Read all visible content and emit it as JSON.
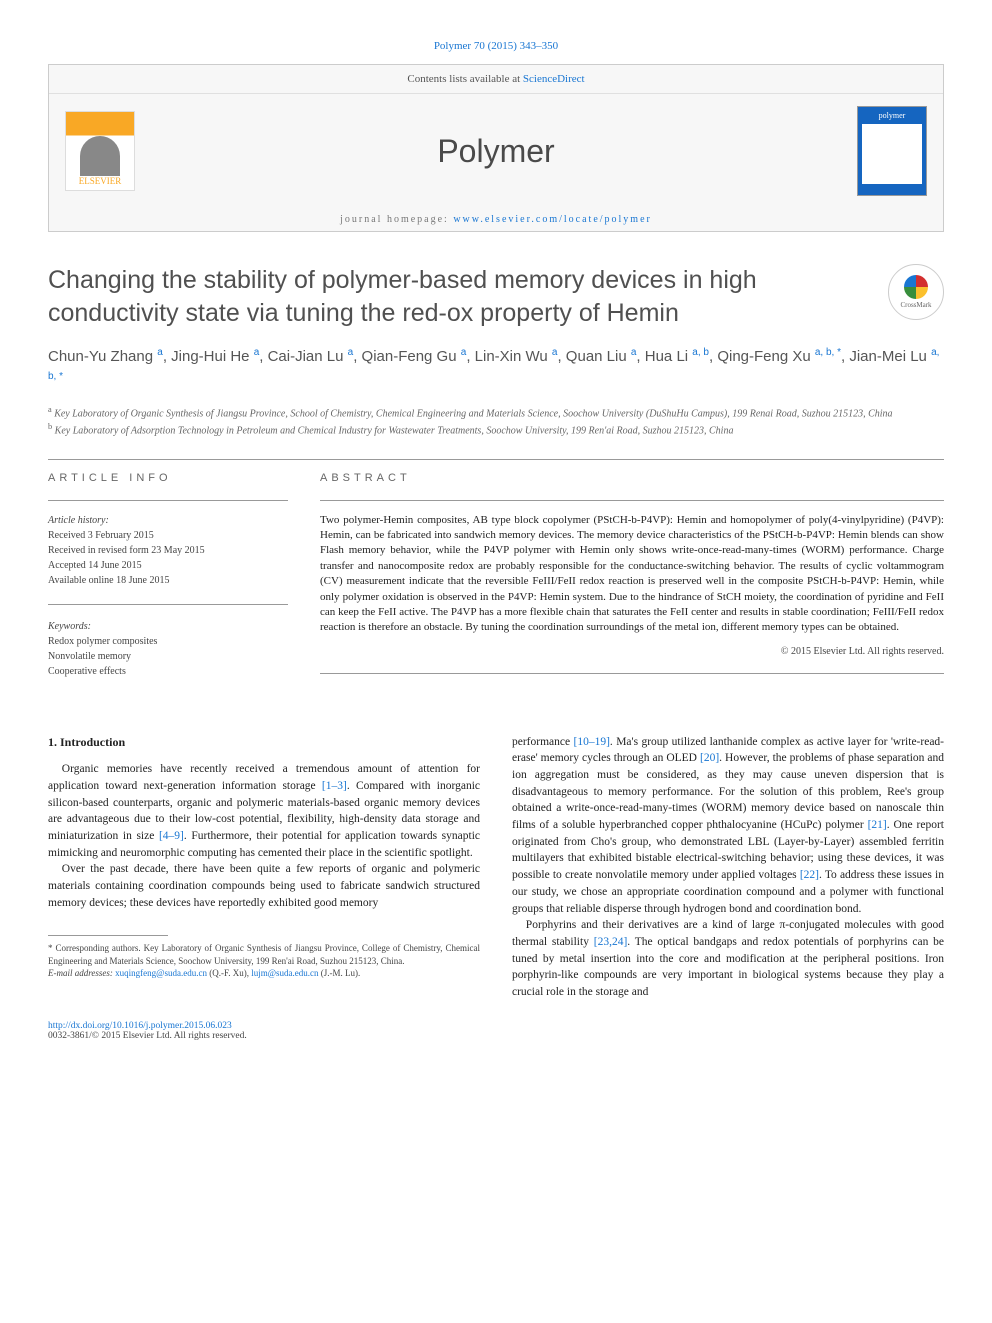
{
  "citation": "Polymer 70 (2015) 343–350",
  "header": {
    "contents_text": "Contents lists available at ",
    "contents_link": "ScienceDirect",
    "journal": "Polymer",
    "homepage_label": "journal homepage: ",
    "homepage_url": "www.elsevier.com/locate/polymer",
    "publisher": "ELSEVIER",
    "cover_label": "polymer"
  },
  "title": "Changing the stability of polymer-based memory devices in high conductivity state via tuning the red-ox property of Hemin",
  "crossmark": "CrossMark",
  "authors_html": "Chun-Yu Zhang <sup>a</sup>, Jing-Hui He <sup>a</sup>, Cai-Jian Lu <sup>a</sup>, Qian-Feng Gu <sup>a</sup>, Lin-Xin Wu <sup>a</sup>, Quan Liu <sup>a</sup>, Hua Li <sup>a, b</sup>, Qing-Feng Xu <sup>a, b, *</sup>, Jian-Mei Lu <sup>a, b, *</sup>",
  "affiliations": {
    "a": "Key Laboratory of Organic Synthesis of Jiangsu Province, School of Chemistry, Chemical Engineering and Materials Science, Soochow University (DuShuHu Campus), 199 Renai Road, Suzhou 215123, China",
    "b": "Key Laboratory of Adsorption Technology in Petroleum and Chemical Industry for Wastewater Treatments, Soochow University, 199 Ren'ai Road, Suzhou 215123, China"
  },
  "info": {
    "label": "ARTICLE INFO",
    "history_label": "Article history:",
    "received": "Received 3 February 2015",
    "revised": "Received in revised form 23 May 2015",
    "accepted": "Accepted 14 June 2015",
    "online": "Available online 18 June 2015",
    "keywords_label": "Keywords:",
    "kw1": "Redox polymer composites",
    "kw2": "Nonvolatile memory",
    "kw3": "Cooperative effects"
  },
  "abstract": {
    "label": "ABSTRACT",
    "text": "Two polymer-Hemin composites, AB type block copolymer (PStCH-b-P4VP): Hemin and homopolymer of poly(4-vinylpyridine) (P4VP): Hemin, can be fabricated into sandwich memory devices. The memory device characteristics of the PStCH-b-P4VP: Hemin blends can show Flash memory behavior, while the P4VP polymer with Hemin only shows write-once-read-many-times (WORM) performance. Charge transfer and nanocomposite redox are probably responsible for the conductance-switching behavior. The results of cyclic voltammogram (CV) measurement indicate that the reversible FeIII/FeII redox reaction is preserved well in the composite PStCH-b-P4VP: Hemin, while only polymer oxidation is observed in the P4VP: Hemin system. Due to the hindrance of StCH moiety, the coordination of pyridine and FeII can keep the FeII active. The P4VP has a more flexible chain that saturates the FeII center and results in stable coordination; FeIII/FeII redox reaction is therefore an obstacle. By tuning the coordination surroundings of the metal ion, different memory types can be obtained.",
    "copyright": "© 2015 Elsevier Ltd. All rights reserved."
  },
  "body": {
    "heading": "1. Introduction",
    "p1": "Organic memories have recently received a tremendous amount of attention for application toward next-generation information storage [1–3]. Compared with inorganic silicon-based counterparts, organic and polymeric materials-based organic memory devices are advantageous due to their low-cost potential, flexibility, high-density data storage and miniaturization in size [4–9]. Furthermore, their potential for application towards synaptic mimicking and neuromorphic computing has cemented their place in the scientific spotlight.",
    "p2": "Over the past decade, there have been quite a few reports of organic and polymeric materials containing coordination compounds being used to fabricate sandwich structured memory devices; these devices have reportedly exhibited good memory",
    "p3": "performance [10–19]. Ma's group utilized lanthanide complex as active layer for 'write-read-erase' memory cycles through an OLED [20]. However, the problems of phase separation and ion aggregation must be considered, as they may cause uneven dispersion that is disadvantageous to memory performance. For the solution of this problem, Ree's group obtained a write-once-read-many-times (WORM) memory device based on nanoscale thin films of a soluble hyperbranched copper phthalocyanine (HCuPc) polymer [21]. One report originated from Cho's group, who demonstrated LBL (Layer-by-Layer) assembled ferritin multilayers that exhibited bistable electrical-switching behavior; using these devices, it was possible to create nonvolatile memory under applied voltages [22]. To address these issues in our study, we chose an appropriate coordination compound and a polymer with functional groups that reliable disperse through hydrogen bond and coordination bond.",
    "p4": "Porphyrins and their derivatives are a kind of large π-conjugated molecules with good thermal stability [23,24]. The optical bandgaps and redox potentials of porphyrins can be tuned by metal insertion into the core and modification at the peripheral positions. Iron porphyrin-like compounds are very important in biological systems because they play a crucial role in the storage and"
  },
  "footnote": {
    "corr": "* Corresponding authors. Key Laboratory of Organic Synthesis of Jiangsu Province, College of Chemistry, Chemical Engineering and Materials Science, Soochow University, 199 Ren'ai Road, Suzhou 215123, China.",
    "email_label": "E-mail addresses: ",
    "email1": "xuqingfeng@suda.edu.cn",
    "email1_name": " (Q.-F. Xu), ",
    "email2": "lujm@suda.edu.cn",
    "email2_name": " (J.-M. Lu)."
  },
  "doi": {
    "url": "http://dx.doi.org/10.1016/j.polymer.2015.06.023",
    "issn": "0032-3861/© 2015 Elsevier Ltd. All rights reserved."
  },
  "ref_links": [
    "[1–3]",
    "[4–9]",
    "[10–19]",
    "[20]",
    "[21]",
    "[22]",
    "[23,24]"
  ],
  "colors": {
    "link": "#1976d2",
    "heading": "#505050",
    "rule": "#999999"
  }
}
